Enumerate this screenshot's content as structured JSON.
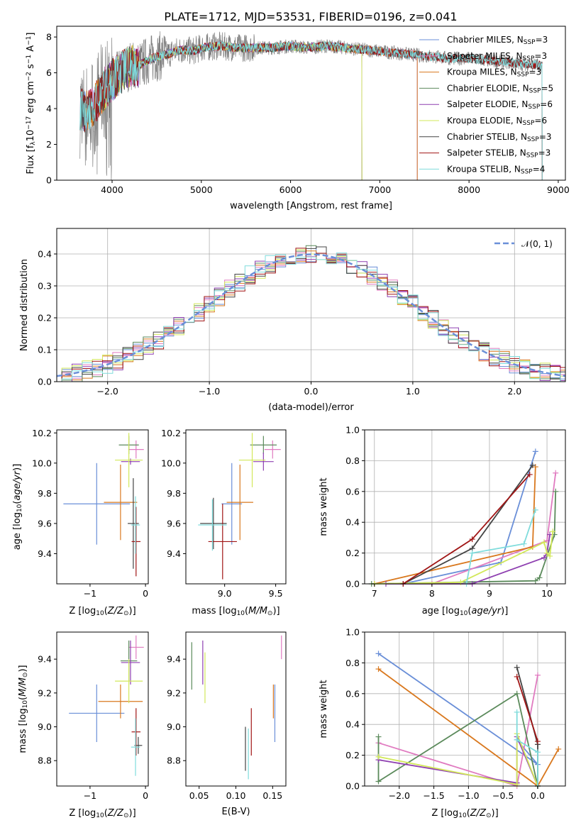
{
  "figure": {
    "title": "PLATE=1712, MJD=53531, FIBERID=0196, z=0.041",
    "fit_names": [
      "Chabrier MILES",
      "Salpeter MILES",
      "Kroupa MILES",
      "Chabrier ELODIE",
      "Salpeter ELODIE",
      "Kroupa ELODIE",
      "Chabrier STELIB",
      "Salpeter STELIB",
      "Kroupa STELIB"
    ],
    "fit_nssp": [
      3,
      3,
      3,
      5,
      6,
      6,
      3,
      3,
      4
    ],
    "fit_colors": [
      "#6a8fd8",
      "#e07bc0",
      "#d9781e",
      "#5b8a5b",
      "#8e3fb0",
      "#d2e85a",
      "#444444",
      "#a01515",
      "#7fdcdc"
    ]
  },
  "chart_data": [
    {
      "type": "line",
      "panel": "spectrum",
      "title": "PLATE=1712, MJD=53531, FIBERID=0196, z=0.041",
      "xlabel": "wavelength [Angstrom, rest frame]",
      "ylabel": "Flux [f",
      "ylabel_sub": "λ",
      "ylabel_rest": "10",
      "ylabel_exp": "−17",
      "ylabel_units": " erg cm",
      "ylabel_exp2": "−2",
      "ylabel_s": " s",
      "ylabel_exp3": "−1",
      "ylabel_A": " A",
      "ylabel_exp4": "−1",
      "ylabel_end": "]",
      "xlim": [
        3380,
        9080
      ],
      "ylim": [
        0,
        8.6
      ],
      "xticks": [
        4000,
        5000,
        6000,
        7000,
        8000,
        9000
      ],
      "yticks": [
        0,
        2,
        4,
        6,
        8
      ],
      "grid": false,
      "legend_position": "upper-right",
      "legend_entries": [
        {
          "label": "Chabrier MILES, N",
          "sub": "SSP",
          "suffix": "=3"
        },
        {
          "label": "Salpeter MILES, N",
          "sub": "SSP",
          "suffix": "=3"
        },
        {
          "label": "Kroupa MILES, N",
          "sub": "SSP",
          "suffix": "=3"
        },
        {
          "label": "Chabrier ELODIE, N",
          "sub": "SSP",
          "suffix": "=5"
        },
        {
          "label": "Salpeter ELODIE, N",
          "sub": "SSP",
          "suffix": "=6"
        },
        {
          "label": "Kroupa ELODIE, N",
          "sub": "SSP",
          "suffix": "=6"
        },
        {
          "label": "Chabrier STELIB, N",
          "sub": "SSP",
          "suffix": "=3"
        },
        {
          "label": "Salpeter STELIB, N",
          "sub": "SSP",
          "suffix": "=3"
        },
        {
          "label": "Kroupa STELIB, N",
          "sub": "SSP",
          "suffix": "=4"
        }
      ],
      "data_color": "#808080",
      "continuum_points": [
        [
          3640,
          4.0
        ],
        [
          3700,
          3.8
        ],
        [
          3800,
          4.2
        ],
        [
          3900,
          5.0
        ],
        [
          4000,
          5.6
        ],
        [
          4100,
          6.0
        ],
        [
          4200,
          6.4
        ],
        [
          4300,
          6.4
        ],
        [
          4400,
          6.7
        ],
        [
          4500,
          6.9
        ],
        [
          4600,
          7.0
        ],
        [
          4700,
          7.2
        ],
        [
          4800,
          7.3
        ],
        [
          4900,
          7.2
        ],
        [
          5000,
          7.4
        ],
        [
          5200,
          7.5
        ],
        [
          5400,
          7.4
        ],
        [
          5600,
          7.4
        ],
        [
          5800,
          7.4
        ],
        [
          6000,
          7.5
        ],
        [
          6200,
          7.4
        ],
        [
          6400,
          7.5
        ],
        [
          6600,
          7.4
        ],
        [
          6800,
          7.3
        ],
        [
          7000,
          7.2
        ],
        [
          7200,
          7.1
        ],
        [
          7400,
          7.0
        ],
        [
          7600,
          6.9
        ],
        [
          7800,
          6.8
        ],
        [
          8000,
          6.8
        ],
        [
          8200,
          6.7
        ],
        [
          8400,
          6.6
        ],
        [
          8600,
          6.5
        ],
        [
          8820,
          6.4
        ]
      ],
      "model_ranges": [
        {
          "fit": "Chabrier MILES",
          "x": [
            3640,
            7420
          ]
        },
        {
          "fit": "Salpeter MILES",
          "x": [
            3640,
            7420
          ]
        },
        {
          "fit": "Kroupa MILES",
          "x": [
            3640,
            7420
          ]
        },
        {
          "fit": "Chabrier ELODIE",
          "x": [
            3900,
            6800
          ]
        },
        {
          "fit": "Salpeter ELODIE",
          "x": [
            3900,
            6800
          ]
        },
        {
          "fit": "Kroupa ELODIE",
          "x": [
            3900,
            6800
          ]
        },
        {
          "fit": "Chabrier STELIB",
          "x": [
            3640,
            8820
          ]
        },
        {
          "fit": "Salpeter STELIB",
          "x": [
            3640,
            8820
          ]
        },
        {
          "fit": "Kroupa STELIB",
          "x": [
            3640,
            8820
          ]
        }
      ]
    },
    {
      "type": "line",
      "panel": "residual-histogram",
      "xlabel": "(data-model)/error",
      "ylabel": "Normed distribution",
      "xlim": [
        -2.5,
        2.5
      ],
      "ylim": [
        0,
        0.48
      ],
      "xticks": [
        -2,
        -1,
        0,
        1,
        2
      ],
      "yticks": [
        0.0,
        0.1,
        0.2,
        0.3,
        0.4
      ],
      "grid": true,
      "legend_position": "upper-right",
      "legend_label": "𝒩(0, 1)",
      "reference_curve": {
        "name": "𝒩(0, 1)",
        "mu": 0,
        "sigma": 1,
        "color": "#6a8fd8"
      },
      "bin_width": 0.1
    },
    {
      "type": "scatter",
      "panel": "age-vs-Z",
      "xlabel": "Z [log",
      "xlabel_sub": "10",
      "xlabel_rest": "(Z/Z",
      "xlabel_sub2": "⊙",
      "xlabel_end": ")]",
      "ylabel": "age  [log",
      "ylabel_sub": "10",
      "ylabel_rest": "(age/yr)]",
      "xlim": [
        -1.6,
        0.05
      ],
      "ylim": [
        9.2,
        10.22
      ],
      "xticks": [
        -1,
        0
      ],
      "yticks": [
        9.4,
        9.6,
        9.8,
        10.0,
        10.2
      ],
      "points": [
        {
          "fit": "Chabrier MILES",
          "x": -0.88,
          "y": 9.73,
          "xerr": 0.6,
          "yerr": 0.27
        },
        {
          "fit": "Salpeter MILES",
          "x": -0.17,
          "y": 10.09,
          "xerr": 0.14,
          "yerr": 0.06
        },
        {
          "fit": "Kroupa MILES",
          "x": -0.45,
          "y": 9.74,
          "xerr": 0.3,
          "yerr": 0.25
        },
        {
          "fit": "Chabrier ELODIE",
          "x": -0.3,
          "y": 10.12,
          "xerr": 0.18,
          "yerr": 0.06
        },
        {
          "fit": "Salpeter ELODIE",
          "x": -0.27,
          "y": 10.01,
          "xerr": 0.17,
          "yerr": 0.02
        },
        {
          "fit": "Kroupa ELODIE",
          "x": -0.3,
          "y": 10.02,
          "xerr": 0.25,
          "yerr": 0.18
        },
        {
          "fit": "Chabrier STELIB",
          "x": -0.22,
          "y": 9.6,
          "xerr": 0.1,
          "yerr": 0.3
        },
        {
          "fit": "Salpeter STELIB",
          "x": -0.17,
          "y": 9.48,
          "xerr": 0.08,
          "yerr": 0.23
        },
        {
          "fit": "Kroupa STELIB",
          "x": -0.18,
          "y": 9.59,
          "xerr": 0.08,
          "yerr": 0.19
        }
      ]
    },
    {
      "type": "scatter",
      "panel": "age-vs-mass",
      "xlabel": "mass [log",
      "xlabel_sub": "10",
      "xlabel_rest": "(M/M",
      "xlabel_sub2": "⊙",
      "xlabel_end": ")]",
      "xlim": [
        8.62,
        9.6
      ],
      "ylim": [
        9.2,
        10.22
      ],
      "xticks": [
        9.0,
        9.5
      ],
      "yticks": [
        9.4,
        9.6,
        9.8,
        10.0,
        10.2
      ],
      "points": [
        {
          "fit": "Chabrier MILES",
          "x": 9.07,
          "y": 9.73,
          "xerr": 0.1,
          "yerr": 0.27
        },
        {
          "fit": "Salpeter MILES",
          "x": 9.47,
          "y": 10.09,
          "xerr": 0.08,
          "yerr": 0.06
        },
        {
          "fit": "Kroupa MILES",
          "x": 9.15,
          "y": 9.74,
          "xerr": 0.13,
          "yerr": 0.25
        },
        {
          "fit": "Chabrier ELODIE",
          "x": 9.38,
          "y": 10.12,
          "xerr": 0.13,
          "yerr": 0.06
        },
        {
          "fit": "Salpeter ELODIE",
          "x": 9.38,
          "y": 10.01,
          "xerr": 0.1,
          "yerr": 0.06
        },
        {
          "fit": "Kroupa ELODIE",
          "x": 9.27,
          "y": 10.02,
          "xerr": 0.13,
          "yerr": 0.18
        },
        {
          "fit": "Chabrier STELIB",
          "x": 8.89,
          "y": 9.6,
          "xerr": 0.13,
          "yerr": 0.17
        },
        {
          "fit": "Salpeter STELIB",
          "x": 8.98,
          "y": 9.48,
          "xerr": 0.14,
          "yerr": 0.25
        },
        {
          "fit": "Kroupa STELIB",
          "x": 8.88,
          "y": 9.59,
          "xerr": 0.14,
          "yerr": 0.17
        }
      ]
    },
    {
      "type": "line",
      "panel": "mass-weight-vs-age",
      "xlabel": "age  [log",
      "xlabel_sub": "10",
      "xlabel_rest": "(age/yr)]",
      "ylabel": "mass weight",
      "xlim": [
        6.83,
        10.32
      ],
      "ylim": [
        0,
        1.0
      ],
      "xticks": [
        7,
        8,
        9,
        10
      ],
      "yticks": [
        0.0,
        0.2,
        0.4,
        0.6,
        0.8,
        1.0
      ],
      "grid": true,
      "series": [
        {
          "fit": "Chabrier MILES",
          "x": [
            7.5,
            9.2,
            9.8
          ],
          "y": [
            0.0,
            0.14,
            0.86
          ]
        },
        {
          "fit": "Salpeter MILES",
          "x": [
            8.0,
            10.0,
            10.15
          ],
          "y": [
            0.0,
            0.28,
            0.72
          ]
        },
        {
          "fit": "Kroupa MILES",
          "x": [
            7.0,
            9.75,
            9.8
          ],
          "y": [
            0.0,
            0.24,
            0.76
          ]
        },
        {
          "fit": "Chabrier ELODIE",
          "x": [
            6.95,
            9.8,
            9.87,
            10.13,
            10.15
          ],
          "y": [
            0.0,
            0.02,
            0.04,
            0.32,
            0.6
          ]
        },
        {
          "fit": "Salpeter ELODIE",
          "x": [
            7.2,
            8.7,
            9.95,
            10.0,
            10.05
          ],
          "y": [
            0.0,
            0.0,
            0.17,
            0.2,
            0.32
          ]
        },
        {
          "fit": "Kroupa ELODIE",
          "x": [
            7.0,
            8.5,
            9.95,
            10.0,
            10.05,
            10.1
          ],
          "y": [
            0.0,
            0.01,
            0.27,
            0.2,
            0.18,
            0.34
          ]
        },
        {
          "fit": "Chabrier STELIB",
          "x": [
            7.5,
            8.7,
            9.75
          ],
          "y": [
            0.0,
            0.23,
            0.77
          ]
        },
        {
          "fit": "Salpeter STELIB",
          "x": [
            7.5,
            8.7,
            9.7
          ],
          "y": [
            0.0,
            0.29,
            0.71
          ]
        },
        {
          "fit": "Kroupa STELIB",
          "x": [
            8.6,
            8.7,
            9.6,
            9.8
          ],
          "y": [
            0.0,
            0.2,
            0.26,
            0.48
          ]
        }
      ]
    },
    {
      "type": "scatter",
      "panel": "mass-vs-Z",
      "xlabel": "Z [log",
      "xlabel_sub": "10",
      "xlabel_rest": "(Z/Z",
      "xlabel_sub2": "⊙",
      "xlabel_end": ")]",
      "ylabel": "mass [log",
      "ylabel_sub": "10",
      "ylabel_rest": "(M/M",
      "ylabel_sub2": "⊙",
      "ylabel_end": ")]",
      "xlim": [
        -1.6,
        0.05
      ],
      "ylim": [
        8.65,
        9.56
      ],
      "xticks": [
        -1,
        0
      ],
      "yticks": [
        8.8,
        9.0,
        9.2,
        9.4
      ],
      "points": [
        {
          "fit": "Chabrier MILES",
          "x": -0.88,
          "y": 9.08,
          "xerr": 0.5,
          "yerr": 0.17
        },
        {
          "fit": "Salpeter MILES",
          "x": -0.17,
          "y": 9.47,
          "xerr": 0.14,
          "yerr": 0.07
        },
        {
          "fit": "Kroupa MILES",
          "x": -0.45,
          "y": 9.15,
          "xerr": 0.4,
          "yerr": 0.1
        },
        {
          "fit": "Chabrier ELODIE",
          "x": -0.3,
          "y": 9.39,
          "xerr": 0.15,
          "yerr": 0.12
        },
        {
          "fit": "Salpeter ELODIE",
          "x": -0.27,
          "y": 9.38,
          "xerr": 0.17,
          "yerr": 0.13
        },
        {
          "fit": "Kroupa ELODIE",
          "x": -0.3,
          "y": 9.27,
          "xerr": 0.25,
          "yerr": 0.13
        },
        {
          "fit": "Chabrier STELIB",
          "x": -0.13,
          "y": 8.89,
          "xerr": 0.07,
          "yerr": 0.05
        },
        {
          "fit": "Salpeter STELIB",
          "x": -0.17,
          "y": 8.97,
          "xerr": 0.08,
          "yerr": 0.14
        },
        {
          "fit": "Kroupa STELIB",
          "x": -0.18,
          "y": 8.88,
          "xerr": 0.08,
          "yerr": 0.17
        }
      ]
    },
    {
      "type": "scatter",
      "panel": "mass-vs-EBV",
      "xlabel": "E(B-V)",
      "xlim": [
        0.032,
        0.168
      ],
      "ylim": [
        8.65,
        9.56
      ],
      "xticks": [
        0.05,
        0.1,
        0.15
      ],
      "yticks": [
        8.8,
        9.0,
        9.2,
        9.4
      ],
      "points": [
        {
          "fit": "Chabrier MILES",
          "x": 0.153,
          "y": 9.08,
          "yerr": 0.17
        },
        {
          "fit": "Salpeter MILES",
          "x": 0.162,
          "y": 9.47,
          "yerr": 0.07
        },
        {
          "fit": "Kroupa MILES",
          "x": 0.151,
          "y": 9.15,
          "yerr": 0.1
        },
        {
          "fit": "Chabrier ELODIE",
          "x": 0.04,
          "y": 9.36,
          "yerr": 0.14
        },
        {
          "fit": "Salpeter ELODIE",
          "x": 0.055,
          "y": 9.38,
          "yerr": 0.13
        },
        {
          "fit": "Kroupa ELODIE",
          "x": 0.058,
          "y": 9.29,
          "yerr": 0.15
        },
        {
          "fit": "Chabrier STELIB",
          "x": 0.113,
          "y": 8.87,
          "yerr": 0.13
        },
        {
          "fit": "Salpeter STELIB",
          "x": 0.121,
          "y": 8.97,
          "yerr": 0.14
        },
        {
          "fit": "Kroupa STELIB",
          "x": 0.117,
          "y": 8.84,
          "yerr": 0.15
        }
      ]
    },
    {
      "type": "line",
      "panel": "mass-weight-vs-Z",
      "xlabel": "Z [log",
      "xlabel_sub": "10",
      "xlabel_rest": "(Z/Z",
      "xlabel_sub2": "⊙",
      "xlabel_end": ")]",
      "ylabel": "mass weight",
      "xlim": [
        -2.5,
        0.4
      ],
      "ylim": [
        0,
        1.0
      ],
      "xticks": [
        -2.0,
        -1.5,
        -1.0,
        -0.5,
        0.0
      ],
      "yticks": [
        0.0,
        0.2,
        0.4,
        0.6,
        0.8,
        1.0
      ],
      "grid": true,
      "series": [
        {
          "fit": "Chabrier MILES",
          "x": [
            -2.3,
            0.0,
            -0.3
          ],
          "y": [
            0.86,
            0.14,
            0.3
          ]
        },
        {
          "fit": "Salpeter MILES",
          "x": [
            -2.3,
            -0.3,
            0.0
          ],
          "y": [
            0.28,
            0.0,
            0.72
          ]
        },
        {
          "fit": "Kroupa MILES",
          "x": [
            -2.3,
            0.0,
            0.3
          ],
          "y": [
            0.76,
            0.0,
            0.24
          ]
        },
        {
          "fit": "Chabrier ELODIE",
          "x": [
            -2.3,
            -2.3,
            -0.3,
            0.0
          ],
          "y": [
            0.32,
            0.03,
            0.6,
            0.0
          ]
        },
        {
          "fit": "Salpeter ELODIE",
          "x": [
            -2.3,
            -0.3,
            -0.3,
            0.0
          ],
          "y": [
            0.17,
            0.02,
            0.32,
            0.0
          ]
        },
        {
          "fit": "Kroupa ELODIE",
          "x": [
            -2.3,
            -0.3,
            -0.3,
            0.0
          ],
          "y": [
            0.19,
            0.01,
            0.34,
            0.0
          ]
        },
        {
          "fit": "Chabrier STELIB",
          "x": [
            -0.3,
            0.0,
            0.0
          ],
          "y": [
            0.77,
            0.27,
            0.0
          ]
        },
        {
          "fit": "Salpeter STELIB",
          "x": [
            -0.3,
            0.0
          ],
          "y": [
            0.71,
            0.29
          ]
        },
        {
          "fit": "Kroupa STELIB",
          "x": [
            -0.3,
            -0.3,
            0.0,
            0.0
          ],
          "y": [
            0.48,
            0.3,
            0.22,
            0.0
          ]
        }
      ]
    }
  ]
}
